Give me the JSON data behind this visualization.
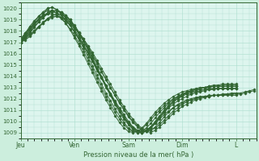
{
  "title": "",
  "xlabel": "Pression niveau de la mer( hPa )",
  "ylabel": "",
  "bg_color": "#cceedd",
  "plot_bg_color": "#ddf5ee",
  "line_color": "#336633",
  "grid_color": "#aaddcc",
  "text_color": "#336633",
  "ylim": [
    1008.5,
    1020.5
  ],
  "yticks": [
    1009,
    1010,
    1011,
    1012,
    1013,
    1014,
    1015,
    1016,
    1017,
    1018,
    1019,
    1020
  ],
  "xtick_labels": [
    "Jeu",
    "Ven",
    "Sam",
    "Dim",
    "L"
  ],
  "xtick_positions": [
    0,
    48,
    96,
    144,
    192
  ],
  "total_points": 210,
  "marker": "D",
  "marker_size": 1.5,
  "linewidth": 0.7,
  "series": [
    {
      "x": [
        0,
        4,
        8,
        12,
        16,
        20,
        24,
        28,
        32,
        36,
        40,
        44,
        48,
        52,
        56,
        60,
        64,
        68,
        72,
        76,
        80,
        84,
        88,
        92,
        96,
        100,
        104,
        108,
        112,
        116,
        120,
        124,
        128,
        132,
        136,
        140,
        144,
        148,
        152,
        156,
        160,
        164,
        168,
        172,
        176,
        180,
        184,
        188,
        192
      ],
      "y": [
        1017.0,
        1017.5,
        1018.0,
        1018.5,
        1019.0,
        1019.5,
        1020.0,
        1020.1,
        1019.9,
        1019.6,
        1019.2,
        1018.8,
        1018.3,
        1017.7,
        1017.1,
        1016.5,
        1015.8,
        1015.1,
        1014.4,
        1013.7,
        1013.0,
        1012.3,
        1011.7,
        1011.1,
        1010.5,
        1010.0,
        1009.6,
        1009.3,
        1009.1,
        1009.0,
        1009.2,
        1009.5,
        1009.9,
        1010.3,
        1010.7,
        1011.0,
        1011.3,
        1011.5,
        1011.7,
        1011.9,
        1012.0,
        1012.1,
        1012.2,
        1012.3,
        1012.3,
        1012.4,
        1012.4,
        1012.5,
        1012.5
      ]
    },
    {
      "x": [
        0,
        4,
        8,
        12,
        16,
        20,
        24,
        28,
        32,
        36,
        40,
        44,
        48,
        52,
        56,
        60,
        64,
        68,
        72,
        76,
        80,
        84,
        88,
        92,
        96,
        100,
        104,
        108,
        112,
        116,
        120,
        124,
        128,
        132,
        136,
        140,
        144,
        148,
        152,
        156,
        160,
        164,
        168,
        172,
        176,
        180,
        184,
        188,
        192
      ],
      "y": [
        1017.0,
        1017.6,
        1018.2,
        1018.8,
        1019.3,
        1019.7,
        1020.0,
        1020.1,
        1019.9,
        1019.5,
        1019.0,
        1018.5,
        1017.9,
        1017.2,
        1016.5,
        1015.7,
        1014.9,
        1014.1,
        1013.3,
        1012.5,
        1011.8,
        1011.1,
        1010.5,
        1009.9,
        1009.4,
        1009.1,
        1009.0,
        1009.1,
        1009.4,
        1009.8,
        1010.3,
        1010.8,
        1011.2,
        1011.6,
        1011.9,
        1012.2,
        1012.4,
        1012.6,
        1012.7,
        1012.8,
        1012.9,
        1013.0,
        1013.0,
        1013.1,
        1013.1,
        1013.2,
        1013.2,
        1013.2,
        1013.2
      ]
    },
    {
      "x": [
        0,
        4,
        8,
        12,
        16,
        20,
        24,
        28,
        32,
        36,
        40,
        44,
        48,
        52,
        56,
        60,
        64,
        68,
        72,
        76,
        80,
        84,
        88,
        92,
        96,
        100,
        104,
        108,
        112,
        116,
        120,
        124,
        128,
        132,
        136,
        140,
        144,
        148,
        152,
        156,
        160,
        164,
        168,
        172,
        176,
        180,
        184,
        188,
        192
      ],
      "y": [
        1017.0,
        1017.4,
        1017.8,
        1018.3,
        1018.8,
        1019.2,
        1019.6,
        1019.8,
        1019.8,
        1019.6,
        1019.2,
        1018.7,
        1018.1,
        1017.5,
        1016.8,
        1016.1,
        1015.4,
        1014.6,
        1013.9,
        1013.1,
        1012.4,
        1011.7,
        1011.0,
        1010.4,
        1009.8,
        1009.4,
        1009.1,
        1009.0,
        1009.1,
        1009.4,
        1009.8,
        1010.3,
        1010.8,
        1011.3,
        1011.7,
        1012.0,
        1012.3,
        1012.5,
        1012.7,
        1012.8,
        1012.9,
        1013.0,
        1013.0,
        1013.1,
        1013.1,
        1013.1,
        1013.1,
        1013.1,
        1013.1
      ]
    },
    {
      "x": [
        0,
        4,
        8,
        12,
        16,
        20,
        24,
        28,
        32,
        36,
        40,
        44,
        48,
        52,
        56,
        60,
        64,
        68,
        72,
        76,
        80,
        84,
        88,
        92,
        96,
        100,
        104,
        108,
        112,
        116,
        120,
        124,
        128,
        132,
        136,
        140,
        144,
        148,
        152,
        156,
        160,
        164,
        168,
        172,
        176,
        180,
        184,
        188,
        192
      ],
      "y": [
        1017.1,
        1017.8,
        1018.4,
        1018.9,
        1019.3,
        1019.6,
        1019.8,
        1019.8,
        1019.6,
        1019.2,
        1018.7,
        1018.1,
        1017.4,
        1016.7,
        1015.9,
        1015.1,
        1014.3,
        1013.5,
        1012.7,
        1011.9,
        1011.2,
        1010.5,
        1009.9,
        1009.4,
        1009.1,
        1009.0,
        1009.1,
        1009.4,
        1009.8,
        1010.3,
        1010.8,
        1011.2,
        1011.6,
        1011.9,
        1012.2,
        1012.4,
        1012.6,
        1012.7,
        1012.8,
        1012.9,
        1013.0,
        1013.0,
        1013.1,
        1013.1,
        1013.1,
        1013.1,
        1013.1,
        1013.1,
        1013.1
      ]
    },
    {
      "x": [
        0,
        4,
        8,
        12,
        16,
        20,
        24,
        28,
        32,
        36,
        40,
        44,
        48,
        52,
        56,
        60,
        64,
        68,
        72,
        76,
        80,
        84,
        88,
        92,
        96,
        100,
        104,
        108,
        112,
        116,
        120,
        124,
        128,
        132,
        136,
        140,
        144,
        148,
        152,
        156,
        160,
        164,
        168,
        172,
        176,
        180,
        184,
        188,
        192
      ],
      "y": [
        1017.2,
        1017.4,
        1017.7,
        1018.0,
        1018.4,
        1018.8,
        1019.1,
        1019.3,
        1019.3,
        1019.2,
        1018.9,
        1018.5,
        1017.9,
        1017.4,
        1016.7,
        1016.0,
        1015.3,
        1014.5,
        1013.8,
        1013.0,
        1012.3,
        1011.6,
        1011.0,
        1010.4,
        1009.9,
        1009.5,
        1009.2,
        1009.1,
        1009.2,
        1009.5,
        1009.9,
        1010.4,
        1010.9,
        1011.3,
        1011.7,
        1012.0,
        1012.2,
        1012.4,
        1012.5,
        1012.6,
        1012.7,
        1012.8,
        1012.8,
        1012.9,
        1012.9,
        1012.9,
        1012.9,
        1012.9,
        1012.9
      ]
    },
    {
      "x": [
        0,
        4,
        8,
        12,
        16,
        20,
        24,
        28,
        32,
        36,
        40,
        44,
        48,
        52,
        56,
        60,
        64,
        68,
        72,
        76,
        80,
        84,
        88,
        92,
        96,
        100,
        104,
        108,
        112,
        116,
        120,
        124,
        128,
        132,
        136,
        140,
        144,
        148,
        152,
        156,
        160,
        164,
        168,
        172,
        176,
        180,
        184,
        188,
        192
      ],
      "y": [
        1017.3,
        1017.8,
        1018.3,
        1018.7,
        1019.1,
        1019.4,
        1019.6,
        1019.7,
        1019.6,
        1019.4,
        1019.0,
        1018.5,
        1017.9,
        1017.3,
        1016.7,
        1016.0,
        1015.3,
        1014.6,
        1013.9,
        1013.2,
        1012.5,
        1011.8,
        1011.2,
        1010.6,
        1010.0,
        1009.5,
        1009.2,
        1009.0,
        1009.1,
        1009.4,
        1009.8,
        1010.2,
        1010.6,
        1010.9,
        1011.2,
        1011.4,
        1011.6,
        1011.8,
        1011.9,
        1012.0,
        1012.1,
        1012.2,
        1012.2,
        1012.3,
        1012.3,
        1012.3,
        1012.3,
        1012.3,
        1012.3
      ]
    },
    {
      "x": [
        0,
        4,
        8,
        12,
        16,
        20,
        24,
        28,
        32,
        36,
        40,
        44,
        48,
        52,
        56,
        60,
        64,
        68,
        72,
        76,
        80,
        84,
        88,
        92,
        96,
        100,
        104,
        108,
        112,
        116,
        120,
        124,
        128,
        132,
        136,
        140,
        144,
        148,
        152,
        156,
        160,
        164,
        168,
        172,
        176,
        180,
        184,
        188,
        192
      ],
      "y": [
        1017.0,
        1017.2,
        1017.5,
        1017.9,
        1018.3,
        1018.7,
        1019.1,
        1019.4,
        1019.5,
        1019.5,
        1019.3,
        1018.9,
        1018.4,
        1017.8,
        1017.1,
        1016.4,
        1015.6,
        1014.8,
        1014.0,
        1013.2,
        1012.4,
        1011.7,
        1011.0,
        1010.3,
        1009.8,
        1009.3,
        1009.0,
        1009.0,
        1009.1,
        1009.5,
        1010.0,
        1010.5,
        1011.0,
        1011.4,
        1011.8,
        1012.1,
        1012.3,
        1012.5,
        1012.7,
        1012.8,
        1012.9,
        1013.0,
        1013.1,
        1013.2,
        1013.2,
        1013.3,
        1013.3,
        1013.3,
        1013.3
      ]
    },
    {
      "x": [
        0,
        4,
        8,
        12,
        16,
        20,
        24,
        28,
        32,
        36,
        40,
        44,
        48,
        52,
        56,
        60,
        64,
        68,
        72,
        76,
        80,
        84,
        88,
        92,
        96,
        100,
        104,
        108,
        112,
        116,
        120,
        124,
        128,
        132,
        136,
        140,
        144,
        148,
        152,
        156,
        160,
        164,
        168,
        172,
        176,
        180,
        184,
        188,
        192
      ],
      "y": [
        1017.1,
        1017.5,
        1017.9,
        1018.4,
        1018.8,
        1019.2,
        1019.5,
        1019.7,
        1019.8,
        1019.7,
        1019.4,
        1019.0,
        1018.4,
        1017.8,
        1017.1,
        1016.3,
        1015.5,
        1014.7,
        1013.9,
        1013.1,
        1012.3,
        1011.5,
        1010.8,
        1010.2,
        1009.7,
        1009.3,
        1009.1,
        1009.0,
        1009.2,
        1009.5,
        1009.9,
        1010.4,
        1010.8,
        1011.2,
        1011.5,
        1011.8,
        1012.0,
        1012.2,
        1012.4,
        1012.5,
        1012.6,
        1012.7,
        1012.8,
        1012.8,
        1012.9,
        1012.9,
        1012.9,
        1012.9,
        1012.9
      ]
    },
    {
      "x": [
        0,
        4,
        8,
        12,
        16,
        20,
        24,
        28,
        32,
        36,
        40,
        44,
        48,
        52,
        56,
        60,
        64,
        68,
        72,
        76,
        80,
        84,
        88,
        92,
        96,
        100,
        104,
        108,
        112,
        116,
        120,
        124,
        128,
        132,
        136,
        140,
        144,
        148,
        152,
        156,
        160,
        164,
        168,
        172,
        176,
        180,
        184,
        188,
        192
      ],
      "y": [
        1017.2,
        1017.6,
        1018.1,
        1018.6,
        1019.0,
        1019.3,
        1019.5,
        1019.5,
        1019.4,
        1019.1,
        1018.7,
        1018.2,
        1017.6,
        1016.9,
        1016.2,
        1015.4,
        1014.6,
        1013.8,
        1013.0,
        1012.2,
        1011.5,
        1010.8,
        1010.2,
        1009.7,
        1009.3,
        1009.1,
        1009.1,
        1009.3,
        1009.7,
        1010.1,
        1010.6,
        1011.0,
        1011.4,
        1011.7,
        1012.0,
        1012.2,
        1012.4,
        1012.5,
        1012.6,
        1012.7,
        1012.8,
        1012.8,
        1012.9,
        1012.9,
        1012.9,
        1012.9,
        1012.9,
        1012.9,
        1012.9
      ]
    },
    {
      "x": [
        0,
        4,
        8,
        12,
        16,
        20,
        24,
        28,
        32,
        36,
        40,
        44,
        48,
        52,
        56,
        60,
        64,
        68,
        72,
        76,
        80,
        84,
        88,
        92,
        96,
        100,
        104,
        108,
        112,
        116,
        120,
        124,
        128,
        132,
        136,
        140,
        144,
        148,
        152,
        156,
        160,
        164,
        168,
        172,
        176,
        180,
        184,
        188,
        192,
        196,
        200,
        204,
        208
      ],
      "y": [
        1017.0,
        1017.3,
        1017.6,
        1018.0,
        1018.4,
        1018.7,
        1019.0,
        1019.2,
        1019.3,
        1019.2,
        1019.0,
        1018.7,
        1018.3,
        1017.8,
        1017.3,
        1016.7,
        1016.1,
        1015.4,
        1014.7,
        1014.0,
        1013.3,
        1012.6,
        1011.9,
        1011.3,
        1010.7,
        1010.2,
        1009.7,
        1009.4,
        1009.2,
        1009.2,
        1009.4,
        1009.7,
        1010.1,
        1010.5,
        1010.9,
        1011.2,
        1011.5,
        1011.7,
        1011.9,
        1012.0,
        1012.1,
        1012.2,
        1012.2,
        1012.3,
        1012.3,
        1012.4,
        1012.4,
        1012.4,
        1012.5,
        1012.5,
        1012.6,
        1012.7,
        1012.8
      ]
    },
    {
      "x": [
        0,
        4,
        8,
        12,
        16,
        20,
        24,
        28,
        32,
        36,
        40,
        44,
        48,
        52,
        56,
        60,
        64,
        68,
        72,
        76,
        80,
        84,
        88,
        92,
        96,
        100,
        104,
        108,
        112,
        116,
        120,
        124,
        128,
        132,
        136,
        140,
        144,
        148,
        152,
        156,
        160,
        164,
        168,
        172,
        176,
        180,
        184,
        188,
        192,
        196,
        200,
        204,
        208
      ],
      "y": [
        1017.3,
        1017.8,
        1018.2,
        1018.6,
        1019.0,
        1019.3,
        1019.6,
        1019.8,
        1019.8,
        1019.7,
        1019.4,
        1019.0,
        1018.5,
        1017.9,
        1017.3,
        1016.6,
        1015.9,
        1015.2,
        1014.4,
        1013.7,
        1013.0,
        1012.3,
        1011.6,
        1011.0,
        1010.4,
        1009.9,
        1009.5,
        1009.2,
        1009.1,
        1009.2,
        1009.5,
        1009.9,
        1010.4,
        1010.8,
        1011.2,
        1011.5,
        1011.7,
        1011.9,
        1012.0,
        1012.1,
        1012.2,
        1012.2,
        1012.3,
        1012.3,
        1012.3,
        1012.3,
        1012.4,
        1012.4,
        1012.4,
        1012.4,
        1012.5,
        1012.6,
        1012.7
      ]
    }
  ]
}
